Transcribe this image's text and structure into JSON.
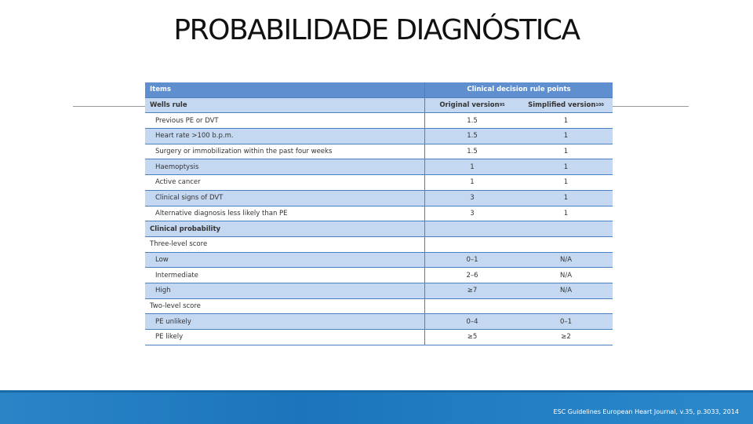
{
  "title": "PROBABILIDADE DIAGNÓSTICA",
  "table": {
    "header": [
      "Items",
      "Clinical decision rule points"
    ],
    "wells_rule": {
      "label": "Wells rule",
      "columns": [
        {
          "text": "Original version",
          "sup": "95"
        },
        {
          "text": "Simplified version",
          "sup": "100"
        }
      ],
      "rows": [
        [
          "Previous PE or DVT",
          "1.5",
          "1"
        ],
        [
          "Heart rate >100 b.p.m.",
          "1.5",
          "1"
        ],
        [
          "Surgery or immobilization within the past four weeks",
          "1.5",
          "1"
        ],
        [
          "Haemoptysis",
          "1",
          "1"
        ],
        [
          "Active cancer",
          "1",
          "1"
        ],
        [
          "Clinical signs of DVT",
          "3",
          "1"
        ],
        [
          "Alternative diagnosis less likely than PE",
          "3",
          "1"
        ]
      ]
    },
    "clinical_probability": {
      "label": "Clinical probability",
      "groups": [
        {
          "label": "Three-level score",
          "rows": [
            [
              "Low",
              "0–1",
              "N/A"
            ],
            [
              "Intermediate",
              "2–6",
              "N/A"
            ],
            [
              "High",
              "≥7",
              "N/A"
            ]
          ]
        },
        {
          "label": "Two-level score",
          "rows": [
            [
              "PE unlikely",
              "0–4",
              "0–1"
            ],
            [
              "PE likely",
              "≥5",
              "≥2"
            ]
          ]
        }
      ]
    }
  },
  "footer": "ESC Guidelines European Heart Journal, v.35, p.3033, 2014"
}
